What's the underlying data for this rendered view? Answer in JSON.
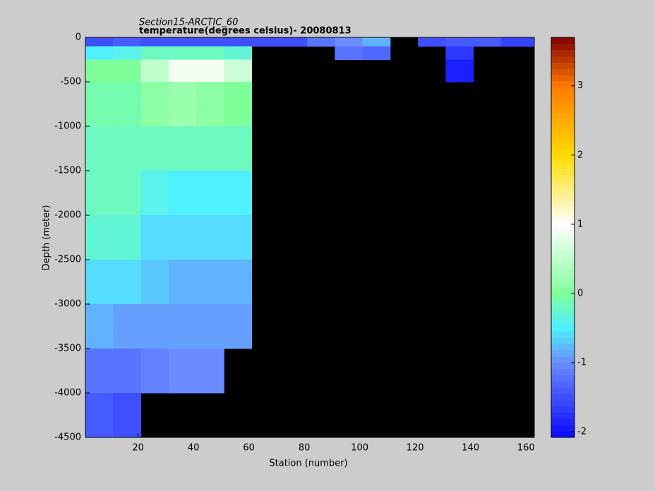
{
  "chart_data": {
    "type": "heatmap",
    "title": "Section15-ARCTIC_60",
    "subtitle": "temperature(degrees  celsius)- 20080813",
    "x_label": "Station (number)",
    "y_label": "Depth (meter)",
    "xlim": [
      1,
      163
    ],
    "xticks": [
      20,
      40,
      60,
      80,
      100,
      120,
      140,
      160
    ],
    "ylim": [
      -4500,
      0
    ],
    "yticks": [
      0,
      -500,
      -1000,
      -1500,
      -2000,
      -2500,
      -3000,
      -3500,
      -4000,
      -4500
    ],
    "x_bins": [
      1,
      11,
      21,
      31,
      41,
      51,
      61,
      71,
      81,
      91,
      101,
      111,
      121,
      131,
      141,
      151,
      163
    ],
    "y_bins": [
      0,
      -100,
      -250,
      -500,
      -1000,
      -1500,
      -2000,
      -2500,
      -3000,
      -3500,
      -4000,
      -4500
    ],
    "values": [
      [
        -1.5,
        -1.4,
        -1.5,
        -1.5,
        -1.5,
        -1.5,
        -1.5,
        -1.5,
        -1.2,
        -1.0,
        -0.8,
        null,
        -1.5,
        -1.4,
        -1.4,
        -1.6
      ],
      [
        -0.5,
        -0.4,
        -0.2,
        -0.2,
        -0.2,
        -0.3,
        null,
        null,
        null,
        -1.2,
        -1.3,
        null,
        null,
        -1.7,
        null,
        null
      ],
      [
        0.0,
        0.0,
        0.5,
        0.9,
        0.9,
        0.6,
        null,
        null,
        null,
        null,
        null,
        null,
        null,
        -1.9,
        null,
        null
      ],
      [
        -0.1,
        -0.1,
        0.1,
        0.2,
        0.1,
        0.0,
        null,
        null,
        null,
        null,
        null,
        null,
        null,
        null,
        null,
        null
      ],
      [
        -0.2,
        -0.2,
        -0.2,
        -0.2,
        -0.2,
        -0.2,
        null,
        null,
        null,
        null,
        null,
        null,
        null,
        null,
        null,
        null
      ],
      [
        -0.2,
        -0.2,
        -0.4,
        -0.5,
        -0.5,
        -0.5,
        null,
        null,
        null,
        null,
        null,
        null,
        null,
        null,
        null,
        null
      ],
      [
        -0.3,
        -0.3,
        -0.6,
        -0.6,
        -0.6,
        -0.6,
        null,
        null,
        null,
        null,
        null,
        null,
        null,
        null,
        null,
        null
      ],
      [
        -0.6,
        -0.6,
        -0.7,
        -0.8,
        -0.8,
        -0.8,
        null,
        null,
        null,
        null,
        null,
        null,
        null,
        null,
        null,
        null
      ],
      [
        -0.8,
        -0.9,
        -0.9,
        -0.9,
        -0.9,
        -0.9,
        null,
        null,
        null,
        null,
        null,
        null,
        null,
        null,
        null,
        null
      ],
      [
        -1.2,
        -1.2,
        -1.1,
        -1.0,
        -1.0,
        null,
        null,
        null,
        null,
        null,
        null,
        null,
        null,
        null,
        null,
        null
      ],
      [
        -1.4,
        -1.5,
        null,
        null,
        null,
        null,
        null,
        null,
        null,
        null,
        null,
        null,
        null,
        null,
        null,
        null
      ]
    ],
    "nan_color": "#000000",
    "clim": [
      -2.08,
      3.7
    ],
    "cticks": [
      -2,
      -1,
      0,
      1,
      2,
      3
    ],
    "colorscale": [
      {
        "value": -2.08,
        "color": "#0a0aff"
      },
      {
        "value": -1,
        "color": "#6b8cff"
      },
      {
        "value": -0.5,
        "color": "#4ff0ff"
      },
      {
        "value": 0,
        "color": "#7fff9a"
      },
      {
        "value": 1,
        "color": "#ffffff"
      },
      {
        "value": 2,
        "color": "#ffdc00"
      },
      {
        "value": 3,
        "color": "#ff7a00"
      },
      {
        "value": 3.7,
        "color": "#800000"
      }
    ]
  }
}
